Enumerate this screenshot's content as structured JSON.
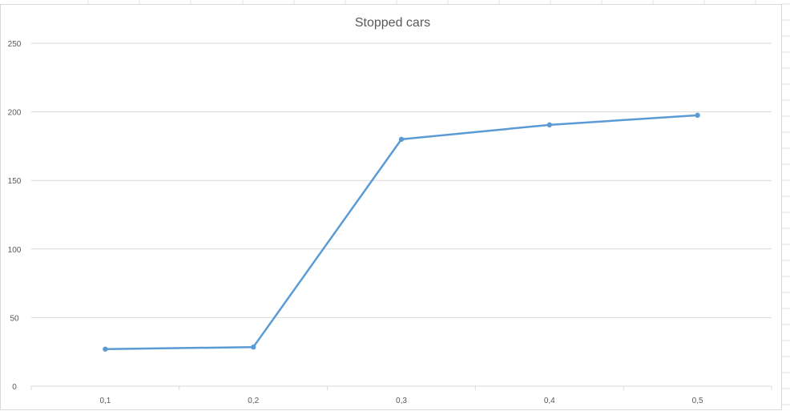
{
  "colors": {
    "series": "#5b9bd5",
    "grid": "#d9d9d9",
    "text": "#595959",
    "sheet_grid": "#e2e2e2"
  },
  "chart_data": {
    "type": "line",
    "title": "Stopped cars",
    "xlabel": "",
    "ylabel": "",
    "categories": [
      "0,1",
      "0,2",
      "0,3",
      "0,4",
      "0,5"
    ],
    "series": [
      {
        "values": [
          27,
          28.5,
          180,
          190.5,
          197.5
        ]
      }
    ],
    "ylim": [
      0,
      250
    ],
    "yticks": [
      0,
      50,
      100,
      150,
      200,
      250
    ],
    "ytick_labels": [
      "0",
      "50",
      "100",
      "150",
      "200",
      "250"
    ],
    "grid": true,
    "legend": "none",
    "markers": true
  }
}
